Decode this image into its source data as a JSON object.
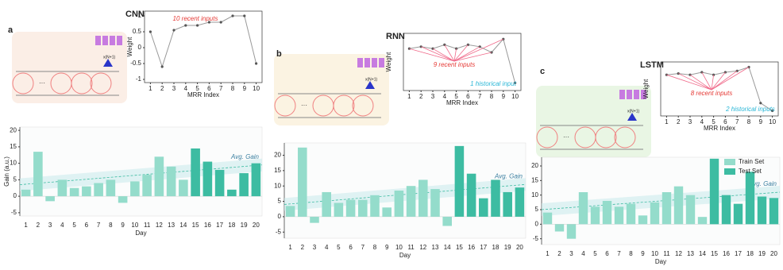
{
  "chart_data": [
    {
      "type": "line",
      "panel": "a",
      "title": "CNN",
      "input_label": "x(N+1)",
      "dots": "···",
      "x_label": "MRR Index",
      "y_label": "Weight",
      "x": [
        1,
        2,
        3,
        4,
        5,
        6,
        7,
        8,
        9,
        10
      ],
      "values": [
        0.5,
        -0.6,
        0.55,
        0.7,
        0.7,
        0.8,
        0.8,
        1.0,
        1.0,
        -0.5
      ],
      "color": "#999999",
      "xlim": [
        0.5,
        10.5
      ],
      "xticks": [
        1,
        2,
        3,
        4,
        5,
        6,
        7,
        8,
        9,
        10
      ],
      "ylim": [
        -1.1,
        1.15
      ],
      "yticks": [
        -1,
        -0.5,
        0,
        0.5,
        1
      ],
      "annotations": [
        {
          "text": "10 recent inputs",
          "color": "#e53935",
          "fan": 0
        }
      ]
    },
    {
      "type": "bar",
      "x_label": "Day",
      "y_label": "Gain (a.u.)",
      "avg_label": "Avg. Gain",
      "avg_values": [
        3.5,
        9.5
      ],
      "categories": [
        "1",
        "2",
        "3",
        "4",
        "5",
        "6",
        "7",
        "8",
        "9",
        "10",
        "11",
        "12",
        "13",
        "14",
        "15",
        "16",
        "17",
        "18",
        "19",
        "20"
      ],
      "series": [
        {
          "name": "Train Set",
          "color": "#94dccb",
          "values": [
            2,
            13.5,
            -1.5,
            5,
            2.5,
            3,
            4,
            5,
            -2,
            4.5,
            6.5,
            12,
            9,
            5,
            null,
            null,
            null,
            null,
            null,
            null
          ]
        },
        {
          "name": "Test Set",
          "color": "#3dbca2",
          "values": [
            null,
            null,
            null,
            null,
            null,
            null,
            null,
            null,
            null,
            null,
            null,
            null,
            null,
            null,
            14.5,
            10.5,
            8,
            2,
            7,
            10
          ]
        }
      ],
      "ylim": [
        -6,
        21
      ],
      "yticks": [
        -5,
        0,
        5,
        10,
        15,
        20
      ],
      "legend": false
    },
    {
      "type": "line",
      "panel": "b",
      "title": "RNN",
      "input_label": "x(N+1)",
      "dots": "···",
      "x_label": "MRR Index",
      "y_label": "Weight",
      "x": [
        1,
        2,
        3,
        4,
        5,
        6,
        7,
        8,
        9,
        10
      ],
      "values": [
        0.5,
        0.55,
        0.5,
        0.6,
        0.5,
        0.6,
        0.55,
        0.4,
        0.75,
        -0.4
      ],
      "color": "#999999",
      "xlim": [
        0.5,
        10.5
      ],
      "xticks": [
        1,
        2,
        3,
        4,
        5,
        6,
        7,
        8,
        9,
        10
      ],
      "ylim": [
        -0.6,
        0.9
      ],
      "yticks": [],
      "annotations": [
        {
          "text": "9 recent inputs",
          "color": "#e53935",
          "fan": 9
        },
        {
          "text": "1 historical input",
          "color": "#29b6d6",
          "fan": 0
        }
      ]
    },
    {
      "type": "bar",
      "x_label": "Day",
      "avg_label": "Avg. Gain",
      "avg_values": [
        4,
        10.5
      ],
      "categories": [
        "1",
        "2",
        "3",
        "4",
        "5",
        "6",
        "7",
        "8",
        "9",
        "10",
        "11",
        "12",
        "13",
        "14",
        "15",
        "16",
        "17",
        "18",
        "19",
        "20"
      ],
      "series": [
        {
          "name": "Train Set",
          "color": "#94dccb",
          "values": [
            3.5,
            22.5,
            -2,
            8,
            4.5,
            5.5,
            5.5,
            7,
            3,
            8.5,
            10,
            12,
            9,
            -3,
            null,
            null,
            null,
            null,
            null,
            null
          ]
        },
        {
          "name": "Test Set",
          "color": "#3dbca2",
          "values": [
            null,
            null,
            null,
            null,
            null,
            null,
            null,
            null,
            null,
            null,
            null,
            null,
            null,
            null,
            23,
            14,
            6,
            12,
            8,
            9.5
          ]
        }
      ],
      "ylim": [
        -7,
        24
      ],
      "yticks": [
        -5,
        0,
        5,
        10,
        15,
        20
      ],
      "legend": false
    },
    {
      "type": "line",
      "panel": "c",
      "title": "LSTM",
      "input_label": "x(N+1)",
      "dots": "···",
      "x_label": "MRR Index",
      "y_label": "Weight",
      "x": [
        1,
        2,
        3,
        4,
        5,
        6,
        7,
        8,
        9,
        10
      ],
      "values": [
        0.5,
        0.55,
        0.5,
        0.6,
        0.5,
        0.6,
        0.65,
        0.8,
        -0.6,
        -0.9
      ],
      "color": "#999999",
      "xlim": [
        0.5,
        10.5
      ],
      "xticks": [
        1,
        2,
        3,
        4,
        5,
        6,
        7,
        8,
        9,
        10
      ],
      "ylim": [
        -1.1,
        1.0
      ],
      "yticks": [],
      "annotations": [
        {
          "text": "8 recent inputs",
          "color": "#e53935",
          "fan": 8
        },
        {
          "text": "2 historical inputs",
          "color": "#29b6d6",
          "fan": 0
        }
      ]
    },
    {
      "type": "bar",
      "x_label": "Day",
      "avg_label": "Avg. Gain",
      "avg_values": [
        5,
        11
      ],
      "categories": [
        "1",
        "2",
        "3",
        "4",
        "5",
        "6",
        "7",
        "8",
        "9",
        "10",
        "11",
        "12",
        "13",
        "14",
        "15",
        "16",
        "17",
        "18",
        "19",
        "20"
      ],
      "series": [
        {
          "name": "Train Set",
          "color": "#94dccb",
          "values": [
            4,
            -2.5,
            -5,
            11,
            6,
            8,
            6,
            7,
            3,
            7.5,
            11,
            13,
            10,
            2.5,
            null,
            null,
            null,
            null,
            null,
            null
          ]
        },
        {
          "name": "Test Set",
          "color": "#3dbca2",
          "values": [
            null,
            null,
            null,
            null,
            null,
            null,
            null,
            null,
            null,
            null,
            null,
            null,
            null,
            null,
            22.5,
            10,
            7,
            18,
            9.5,
            9
          ]
        }
      ],
      "ylim": [
        -7,
        23
      ],
      "yticks": [
        -5,
        0,
        5,
        10,
        15,
        20
      ],
      "legend": true
    }
  ]
}
